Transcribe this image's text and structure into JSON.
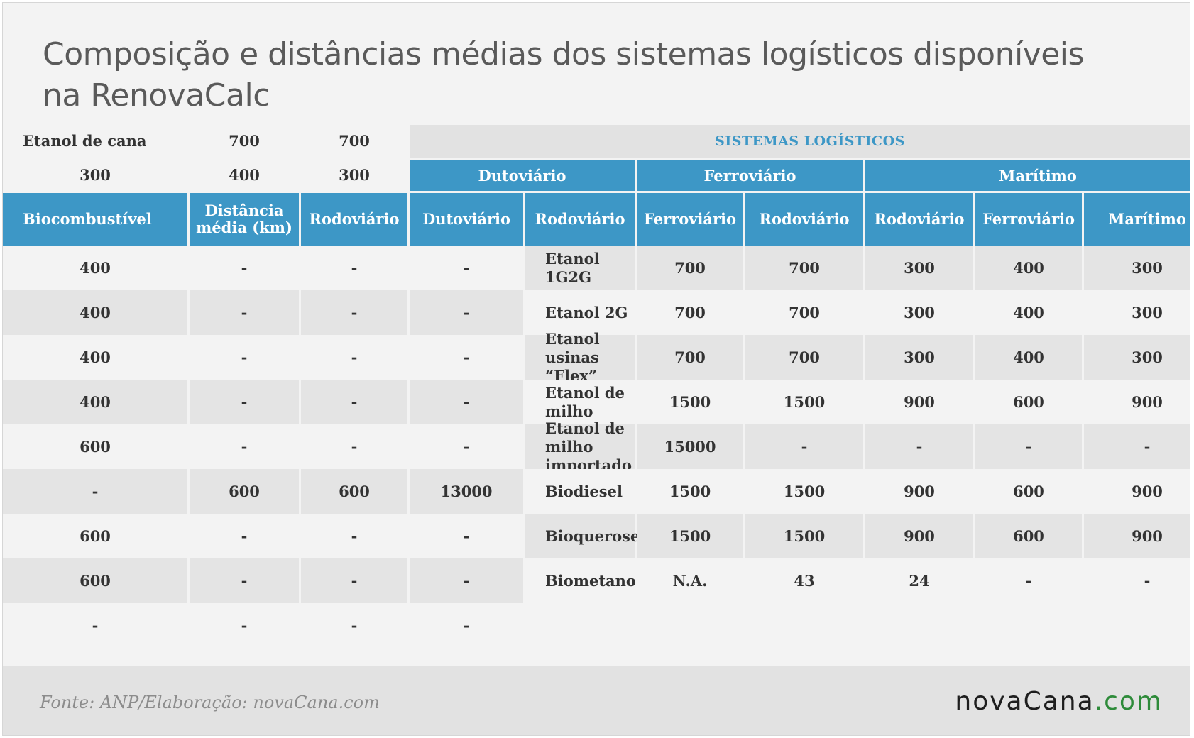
{
  "title_line1": "Composição e distâncias médias dos sistemas logísticos disponíveis",
  "title_line2": "na RenovaCalc",
  "super_header": "SISTEMAS LOGÍSTICOS",
  "group_headers": [
    "Dutoviário",
    "Ferroviário",
    "Marítimo"
  ],
  "column_headers": [
    "Biocombustível",
    "Distância média (km)",
    "Rodoviário",
    "Dutoviário",
    "Rodoviário",
    "Ferroviário",
    "Rodoviário",
    "Rodoviário",
    "Ferroviário",
    "Marítimo"
  ],
  "rows": [
    [
      "Etanol de cana",
      "700",
      "700",
      "300",
      "400",
      "300",
      "400",
      "-",
      "-",
      "-"
    ],
    [
      "Etanol 1G2G",
      "700",
      "700",
      "300",
      "400",
      "300",
      "400",
      "-",
      "-",
      "-"
    ],
    [
      "Etanol 2G",
      "700",
      "700",
      "300",
      "400",
      "300",
      "400",
      "-",
      "-",
      "-"
    ],
    [
      "Etanol usinas “Flex”",
      "700",
      "700",
      "300",
      "400",
      "300",
      "400",
      "-",
      "-",
      "-"
    ],
    [
      "Etanol de milho",
      "1500",
      "1500",
      "900",
      "600",
      "900",
      "600",
      "-",
      "-",
      "-"
    ],
    [
      "Etanol de milho importado",
      "15000",
      "-",
      "-",
      "-",
      "-",
      "-",
      "600",
      "600",
      "13000"
    ],
    [
      "Biodiesel",
      "1500",
      "1500",
      "900",
      "600",
      "900",
      "600",
      "-",
      "-",
      "-"
    ],
    [
      "Bioquerosene",
      "1500",
      "1500",
      "900",
      "600",
      "900",
      "600",
      "-",
      "-",
      "-"
    ],
    [
      "Biometano",
      "N.A.",
      "43",
      "24",
      "-",
      "-",
      "-",
      "-",
      "-",
      "-"
    ]
  ],
  "footer": {
    "source": "Fonte: ANP/Elaboração: novaCana.com",
    "logo_main": "novaCana",
    "logo_suffix": ".com"
  },
  "colors": {
    "header_blue": "#3d97c6",
    "background": "#f3f3f3",
    "row_alt": "#e4e4e4",
    "logo_accent": "#2e8b3a"
  }
}
